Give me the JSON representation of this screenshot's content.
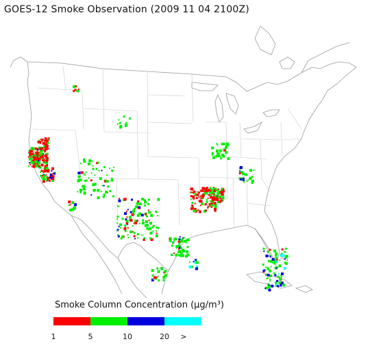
{
  "title": "GOES-12 Smoke Observation (2009 11 04  2100Z)",
  "legend": {
    "title": "Smoke Column Concentration (μg/m³)",
    "colors": [
      "#ff0000",
      "#00ee00",
      "#0000dd",
      "#00ffff"
    ],
    "ticks": [
      "1",
      "5",
      "10",
      "20",
      ">"
    ]
  },
  "map": {
    "outline_color": "#9a9a9a",
    "state_border_color": "#c8c8c8"
  }
}
